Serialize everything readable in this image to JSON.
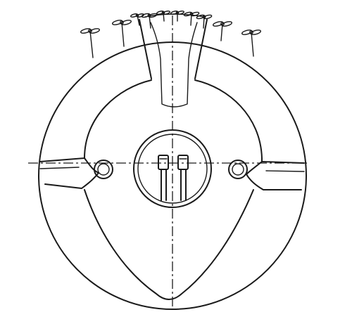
{
  "figure": {
    "subject": "",
    "propeller_count": 10,
    "porthole_count": 2
  },
  "colors": {
    "ink": "#1a1a1a",
    "paper": "#ffffff"
  }
}
